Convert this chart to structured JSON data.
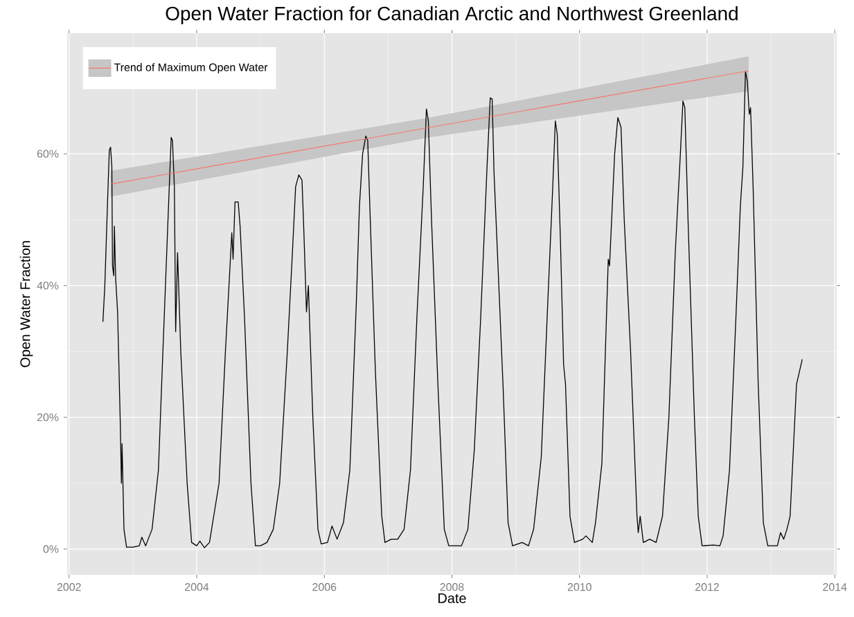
{
  "chart_data": {
    "type": "line",
    "title": "Open Water Fraction for Canadian Arctic and Northwest Greenland",
    "xlabel": "Date",
    "ylabel": "Open Water Fraction",
    "xlim": [
      2001.97,
      2014.03
    ],
    "xticks": [
      2002,
      2004,
      2006,
      2008,
      2010,
      2012,
      2014
    ],
    "ylim": [
      -3.9,
      78.3
    ],
    "yticks": [
      {
        "value": 0,
        "label": "0%"
      },
      {
        "value": 20,
        "label": "20%"
      },
      {
        "value": 40,
        "label": "40%"
      },
      {
        "value": 60,
        "label": "60%"
      }
    ],
    "grid": true,
    "legend": "top left",
    "line_style": "solid",
    "series": [
      {
        "color": "#000000",
        "x": [
          2002.53,
          2002.56,
          2002.6,
          2002.63,
          2002.65,
          2002.67,
          2002.68,
          2002.7,
          2002.71,
          2002.73,
          2002.76,
          2002.8,
          2002.82,
          2002.83,
          2002.86,
          2002.9,
          2003.0,
          2003.1,
          2003.14,
          2003.2,
          2003.3,
          2003.4,
          2003.47,
          2003.55,
          2003.6,
          2003.62,
          2003.65,
          2003.67,
          2003.7,
          2003.75,
          2003.85,
          2003.92,
          2004.0,
          2004.05,
          2004.12,
          2004.2,
          2004.35,
          2004.45,
          2004.55,
          2004.57,
          2004.6,
          2004.65,
          2004.68,
          2004.75,
          2004.85,
          2004.92,
          2005.0,
          2005.1,
          2005.2,
          2005.3,
          2005.42,
          2005.5,
          2005.55,
          2005.6,
          2005.65,
          2005.68,
          2005.72,
          2005.75,
          2005.82,
          2005.9,
          2005.95,
          2006.05,
          2006.12,
          2006.2,
          2006.3,
          2006.4,
          2006.5,
          2006.55,
          2006.6,
          2006.65,
          2006.68,
          2006.72,
          2006.8,
          2006.9,
          2006.95,
          2007.05,
          2007.15,
          2007.25,
          2007.35,
          2007.45,
          2007.55,
          2007.6,
          2007.63,
          2007.68,
          2007.78,
          2007.88,
          2007.95,
          2008.05,
          2008.15,
          2008.25,
          2008.35,
          2008.45,
          2008.55,
          2008.6,
          2008.63,
          2008.66,
          2008.7,
          2008.8,
          2008.88,
          2008.95,
          2009.1,
          2009.2,
          2009.28,
          2009.4,
          2009.5,
          2009.58,
          2009.62,
          2009.65,
          2009.7,
          2009.75,
          2009.78,
          2009.85,
          2009.92,
          2010.05,
          2010.1,
          2010.2,
          2010.25,
          2010.35,
          2010.45,
          2010.47,
          2010.55,
          2010.6,
          2010.65,
          2010.7,
          2010.8,
          2010.9,
          2010.92,
          2010.95,
          2011.0,
          2011.1,
          2011.2,
          2011.3,
          2011.4,
          2011.5,
          2011.58,
          2011.62,
          2011.65,
          2011.7,
          2011.8,
          2011.86,
          2011.92,
          2012.1,
          2012.2,
          2012.25,
          2012.35,
          2012.45,
          2012.52,
          2012.56,
          2012.6,
          2012.63,
          2012.66,
          2012.68,
          2012.72,
          2012.8,
          2012.85,
          2012.88,
          2012.95,
          2013.1,
          2013.15,
          2013.2,
          2013.25,
          2013.3,
          2013.35,
          2013.4,
          2013.49
        ],
        "values": [
          34.5,
          40,
          52,
          60.5,
          61,
          58,
          43,
          41.5,
          49,
          41,
          36,
          20,
          10,
          16,
          3,
          0.3,
          0.3,
          0.5,
          1.8,
          0.5,
          3,
          12,
          30,
          50,
          62.5,
          62,
          55,
          33,
          45,
          30,
          10,
          1,
          0.5,
          1.2,
          0.2,
          1,
          10,
          30,
          48,
          44,
          52.7,
          52.7,
          49,
          35,
          10,
          0.5,
          0.5,
          1,
          3,
          10,
          30,
          45,
          55,
          56.8,
          56,
          48,
          36,
          40,
          20,
          3,
          0.8,
          1,
          3.5,
          1.5,
          4,
          12,
          37,
          52,
          60,
          62.7,
          62,
          50,
          27,
          5,
          1,
          1.5,
          1.5,
          3,
          12,
          35,
          55,
          66.8,
          65,
          50,
          25,
          3,
          0.5,
          0.5,
          0.5,
          3,
          15,
          35,
          58,
          68.5,
          68.3,
          57,
          48,
          25,
          4,
          0.5,
          1,
          0.5,
          3,
          14,
          37,
          55,
          65,
          63,
          47,
          28,
          25,
          5,
          1,
          1.5,
          2,
          1,
          4,
          13,
          44,
          43,
          60,
          65.5,
          64,
          50,
          30,
          5,
          2.5,
          5,
          1,
          1.5,
          1,
          5,
          20,
          45,
          60,
          68,
          67,
          50,
          20,
          5,
          0.5,
          0.6,
          0.5,
          2,
          12,
          35,
          52,
          58,
          72.5,
          71,
          66,
          67,
          55,
          25,
          12,
          4,
          0.5,
          0.5,
          2.5,
          1.5,
          3,
          5,
          15,
          25,
          28.8
        ]
      },
      {
        "name": "Trend of Maximum Open Water",
        "color": "#f8766d",
        "x": [
          2002.65,
          2007.65,
          2012.65
        ],
        "values": [
          55.4,
          64,
          72.6
        ],
        "lower": [
          53.5,
          62.5,
          69.5
        ],
        "upper": [
          57.4,
          65.5,
          74.8
        ]
      }
    ]
  }
}
